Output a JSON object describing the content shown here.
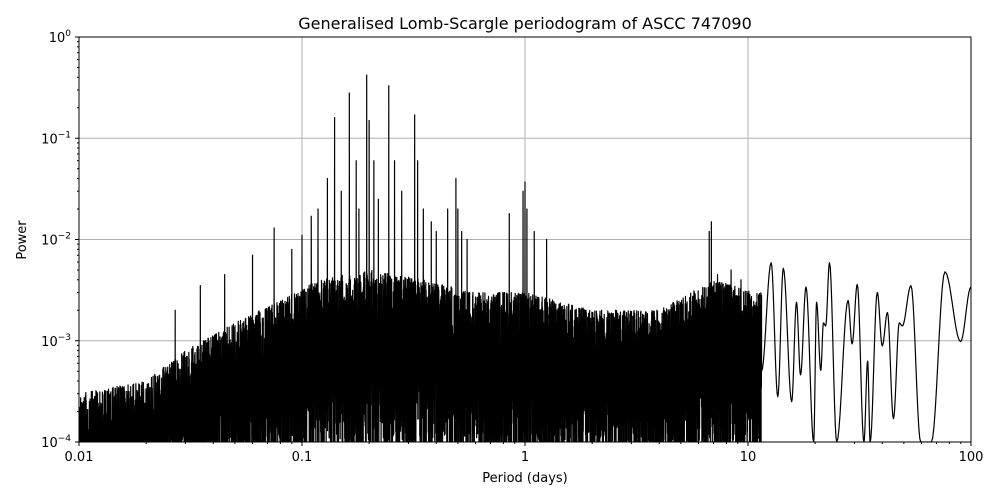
{
  "chart_data": {
    "type": "line",
    "title": "Generalised Lomb-Scargle periodogram of ASCC 747090",
    "xlabel": "Period (days)",
    "ylabel": "Power",
    "xscale": "log",
    "yscale": "log",
    "xlim": [
      0.01,
      100
    ],
    "ylim": [
      0.0001,
      1
    ],
    "grid": true,
    "line_color": "#000000",
    "grid_color": "#b0b0b0",
    "x_ticks": [
      {
        "value": 0.01,
        "label": "0.01"
      },
      {
        "value": 0.1,
        "label": "0.1"
      },
      {
        "value": 1,
        "label": "1"
      },
      {
        "value": 10,
        "label": "10"
      },
      {
        "value": 100,
        "label": "100"
      }
    ],
    "y_ticks": [
      {
        "value": 0.0001,
        "base": "10",
        "exp": "−4"
      },
      {
        "value": 0.001,
        "base": "10",
        "exp": "−3"
      },
      {
        "value": 0.01,
        "base": "10",
        "exp": "−2"
      },
      {
        "value": 0.1,
        "base": "10",
        "exp": "−1"
      },
      {
        "value": 1,
        "base": "10",
        "exp": "0"
      }
    ],
    "noise_envelope": [
      [
        0.01,
        0.0003
      ],
      [
        0.02,
        0.0004
      ],
      [
        0.03,
        0.0008
      ],
      [
        0.05,
        0.0015
      ],
      [
        0.08,
        0.0025
      ],
      [
        0.12,
        0.004
      ],
      [
        0.2,
        0.005
      ],
      [
        0.35,
        0.004
      ],
      [
        0.6,
        0.003
      ],
      [
        1.0,
        0.003
      ],
      [
        2,
        0.002
      ],
      [
        4,
        0.002
      ],
      [
        7,
        0.004
      ],
      [
        11,
        0.003
      ]
    ],
    "noise_limit_period": 11.5,
    "peaks": [
      [
        0.027,
        0.002
      ],
      [
        0.035,
        0.0035
      ],
      [
        0.045,
        0.0045
      ],
      [
        0.06,
        0.007
      ],
      [
        0.075,
        0.013
      ],
      [
        0.09,
        0.008
      ],
      [
        0.1,
        0.011
      ],
      [
        0.11,
        0.017
      ],
      [
        0.118,
        0.02
      ],
      [
        0.13,
        0.04
      ],
      [
        0.14,
        0.16
      ],
      [
        0.15,
        0.03
      ],
      [
        0.163,
        0.28
      ],
      [
        0.175,
        0.06
      ],
      [
        0.18,
        0.02
      ],
      [
        0.195,
        0.42
      ],
      [
        0.2,
        0.15
      ],
      [
        0.21,
        0.06
      ],
      [
        0.22,
        0.025
      ],
      [
        0.245,
        0.33
      ],
      [
        0.26,
        0.06
      ],
      [
        0.28,
        0.03
      ],
      [
        0.32,
        0.17
      ],
      [
        0.33,
        0.06
      ],
      [
        0.35,
        0.02
      ],
      [
        0.38,
        0.015
      ],
      [
        0.4,
        0.012
      ],
      [
        0.45,
        0.02
      ],
      [
        0.49,
        0.04
      ],
      [
        0.5,
        0.02
      ],
      [
        0.52,
        0.012
      ],
      [
        0.55,
        0.01
      ],
      [
        0.85,
        0.018
      ],
      [
        0.98,
        0.03
      ],
      [
        1.0,
        0.037
      ],
      [
        1.02,
        0.02
      ],
      [
        1.1,
        0.012
      ],
      [
        1.25,
        0.01
      ],
      [
        6.7,
        0.012
      ],
      [
        6.85,
        0.015
      ],
      [
        7.3,
        0.0045
      ],
      [
        8.4,
        0.005
      ],
      [
        9.3,
        0.004
      ]
    ],
    "smooth_tail": [
      [
        11.5,
        0.0005
      ],
      [
        12.7,
        0.0059
      ],
      [
        13.6,
        0.00028
      ],
      [
        14.4,
        0.0052
      ],
      [
        15.7,
        0.00025
      ],
      [
        16.5,
        0.0024
      ],
      [
        17.2,
        0.00046
      ],
      [
        18.2,
        0.0034
      ],
      [
        19.7,
        0.0001
      ],
      [
        20.3,
        0.0024
      ],
      [
        21.2,
        0.00051
      ],
      [
        21.8,
        0.0015
      ],
      [
        22.3,
        0.0014
      ],
      [
        23.2,
        0.0059
      ],
      [
        25.0,
        0.0001
      ],
      [
        28.1,
        0.0025
      ],
      [
        29.3,
        0.00093
      ],
      [
        30.9,
        0.0036
      ],
      [
        33.1,
        0.0001
      ],
      [
        34.4,
        0.00063
      ],
      [
        35.3,
        0.0001
      ],
      [
        38.0,
        0.003
      ],
      [
        40.0,
        0.00089
      ],
      [
        42.2,
        0.0019
      ],
      [
        44.9,
        0.00017
      ],
      [
        47.7,
        0.0015
      ],
      [
        49.2,
        0.0014
      ],
      [
        53.8,
        0.0035
      ],
      [
        59.5,
        0.0001
      ],
      [
        66.4,
        0.0001
      ],
      [
        76.4,
        0.0048
      ],
      [
        89.8,
        0.00098
      ],
      [
        100,
        0.0034
      ]
    ]
  }
}
